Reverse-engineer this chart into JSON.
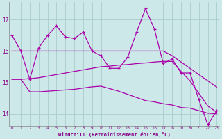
{
  "x": [
    0,
    1,
    2,
    3,
    4,
    5,
    6,
    7,
    8,
    9,
    10,
    11,
    12,
    13,
    14,
    15,
    16,
    17,
    18,
    19,
    20,
    21,
    22,
    23
  ],
  "line1": [
    16.5,
    16.0,
    15.1,
    16.1,
    16.5,
    16.8,
    16.45,
    16.4,
    16.6,
    16.0,
    15.85,
    15.45,
    15.45,
    15.8,
    16.6,
    17.35,
    16.7,
    15.6,
    15.75,
    15.3,
    15.3,
    14.45,
    13.65,
    14.1
  ],
  "line2": [
    16.0,
    16.0,
    16.0,
    16.0,
    16.0,
    16.0,
    16.0,
    16.0,
    16.0,
    16.0,
    16.0,
    16.0,
    16.0,
    16.0,
    16.0,
    16.0,
    16.0,
    16.0,
    15.85,
    15.65,
    15.45,
    15.25,
    15.05,
    14.85
  ],
  "line3": [
    15.1,
    15.1,
    15.12,
    15.15,
    15.2,
    15.25,
    15.3,
    15.35,
    15.4,
    15.45,
    15.5,
    15.52,
    15.55,
    15.57,
    15.6,
    15.62,
    15.65,
    15.67,
    15.67,
    15.35,
    15.05,
    14.65,
    14.25,
    14.05
  ],
  "line4": [
    15.1,
    15.1,
    14.7,
    14.7,
    14.72,
    14.74,
    14.76,
    14.78,
    14.82,
    14.86,
    14.88,
    14.8,
    14.72,
    14.62,
    14.52,
    14.42,
    14.38,
    14.32,
    14.28,
    14.2,
    14.18,
    14.1,
    14.02,
    14.0
  ],
  "bg_color": "#cce8e8",
  "line_color": "#aa00aa",
  "grid_color": "#aacccc",
  "xlabel": "Windchill (Refroidissement éolien,°C)",
  "yticks": [
    14,
    15,
    16,
    17
  ],
  "xticks": [
    0,
    1,
    2,
    3,
    4,
    5,
    6,
    7,
    8,
    9,
    10,
    11,
    12,
    13,
    14,
    15,
    16,
    17,
    18,
    19,
    20,
    21,
    22,
    23
  ],
  "ylim": [
    13.6,
    17.55
  ],
  "xlim": [
    -0.3,
    23.3
  ],
  "tick_color": "#880088",
  "xlabel_color": "#880088"
}
